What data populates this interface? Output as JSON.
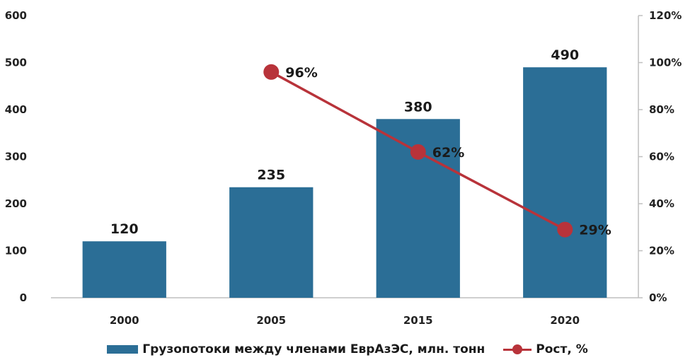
{
  "colors": {
    "bar": "#2b6e96",
    "line": "#b8333a",
    "axis": "#bfbfbf"
  },
  "chart_data": {
    "type": "bar",
    "title": "",
    "xlabel": "",
    "ylabel": "",
    "categories": [
      "2000",
      "2005",
      "2015",
      "2020"
    ],
    "ylim": [
      0,
      600
    ],
    "y2lim": [
      0,
      120
    ],
    "yticks": [
      "0",
      "100",
      "200",
      "300",
      "400",
      "500",
      "600"
    ],
    "y2ticks": [
      "0%",
      "20%",
      "40%",
      "60%",
      "80%",
      "100%",
      "120%"
    ],
    "grid": false,
    "legend_position": "bottom",
    "series": [
      {
        "name": "Грузопотоки между членами ЕврАзЭС, млн. тонн",
        "type": "bar",
        "axis": "left",
        "values": [
          120,
          235,
          380,
          490
        ],
        "labels": [
          "120",
          "235",
          "380",
          "490"
        ]
      },
      {
        "name": "Рост, %",
        "type": "line",
        "axis": "right",
        "values": [
          null,
          96,
          62,
          29
        ],
        "labels": [
          "",
          "96%",
          "62%",
          "29%"
        ]
      }
    ]
  }
}
